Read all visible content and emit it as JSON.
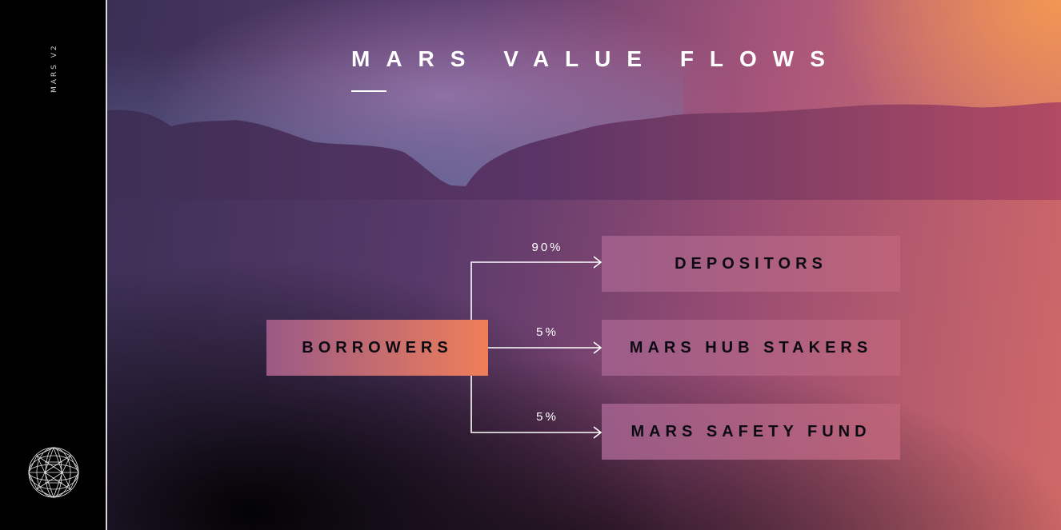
{
  "sidebar": {
    "brand": "MARS V2",
    "logo_icon": "geodesic-globe-icon"
  },
  "slide": {
    "title": "MARS VALUE FLOWS"
  },
  "diagram": {
    "source": "BORROWERS",
    "targets": [
      {
        "label": "DEPOSITORS",
        "share": "90%"
      },
      {
        "label": "MARS HUB STAKERS",
        "share": "5%"
      },
      {
        "label": "MARS SAFETY FUND",
        "share": "5%"
      }
    ]
  },
  "colors": {
    "source_start": "#9a5a86",
    "source_end": "#ee7e5a",
    "target_fill": "#a85f86",
    "connector": "#ffffff",
    "sidebar_bg": "#000000"
  }
}
